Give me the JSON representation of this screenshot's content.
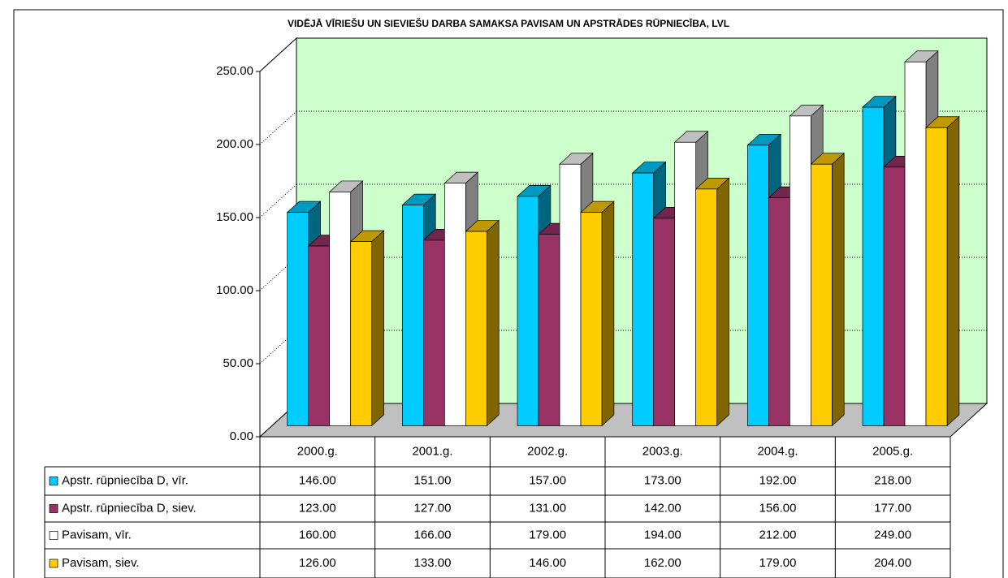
{
  "chart_data": {
    "type": "bar3d",
    "title": "VIDĒJĀ VĪRIEŠU UN SIEVIEŠU DARBA SAMAKSA PAVISAM UN APSTRĀDES RŪPNIECĪBA, LVL",
    "categories": [
      "2000.g.",
      "2001.g.",
      "2002.g.",
      "2003.g.",
      "2004.g.",
      "2005.g."
    ],
    "series": [
      {
        "name": "Apstr. rūpniecība D, vīr.",
        "color": "#00ccff",
        "values": [
          146,
          151,
          157,
          173,
          192,
          218
        ],
        "value_labels": [
          "146.00",
          "151.00",
          "157.00",
          "173.00",
          "192.00",
          "218.00"
        ]
      },
      {
        "name": "Apstr. rūpniecība D, siev.",
        "color": "#993366",
        "values": [
          123,
          127,
          131,
          142,
          156,
          177
        ],
        "value_labels": [
          "123.00",
          "127.00",
          "131.00",
          "142.00",
          "156.00",
          "177.00"
        ]
      },
      {
        "name": "Pavisam, vīr.",
        "color": "#ffffff",
        "values": [
          160,
          166,
          179,
          194,
          212,
          249
        ],
        "value_labels": [
          "160.00",
          "166.00",
          "179.00",
          "194.00",
          "212.00",
          "249.00"
        ]
      },
      {
        "name": "Pavisam, siev.",
        "color": "#ffcc00",
        "values": [
          126,
          133,
          146,
          162,
          179,
          204
        ],
        "value_labels": [
          "126.00",
          "133.00",
          "146.00",
          "162.00",
          "179.00",
          "204.00"
        ]
      }
    ],
    "ylim": [
      0,
      250
    ],
    "yticks": [
      {
        "value": 0,
        "label": "0.00"
      },
      {
        "value": 50,
        "label": "50.00"
      },
      {
        "value": 100,
        "label": "100.00"
      },
      {
        "value": 150,
        "label": "150.00"
      },
      {
        "value": 200,
        "label": "200.00"
      },
      {
        "value": 250,
        "label": "250.00"
      }
    ],
    "grid": true,
    "wall_color": "#ccffcc",
    "floor_color": "#c0c0c0"
  }
}
